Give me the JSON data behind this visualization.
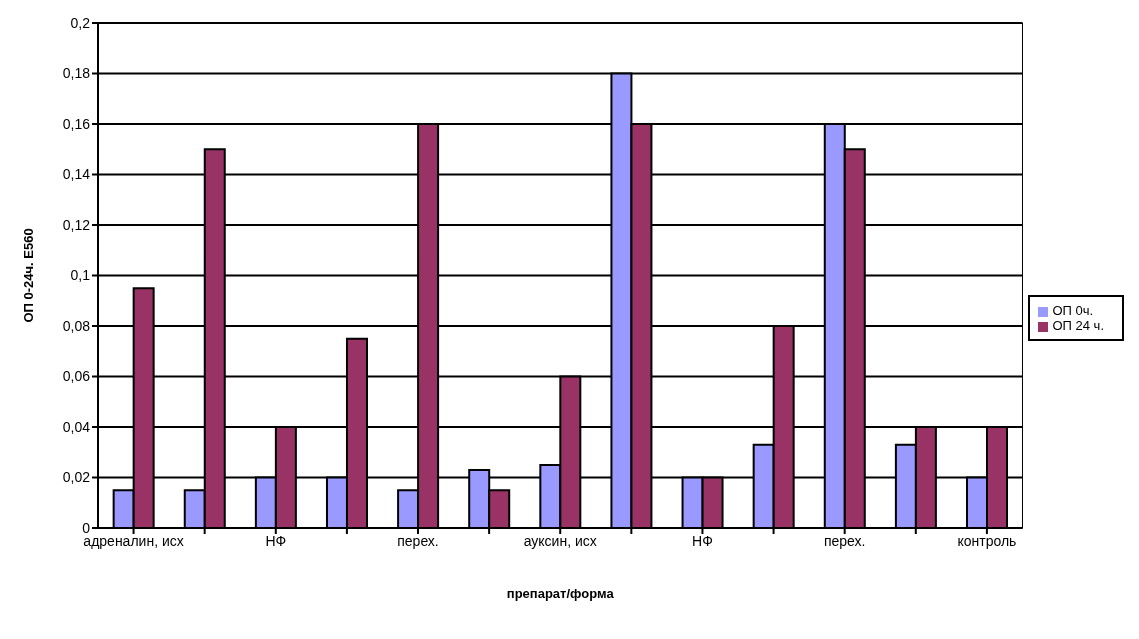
{
  "chart_data": {
    "type": "bar",
    "xlabel": "препарат/форма",
    "ylabel": "ОП 0-24ч. Е560",
    "categories": [
      "адреналин, исх",
      null,
      "НФ",
      null,
      "перех.",
      null,
      "ауксин, исх",
      null,
      "НФ",
      null,
      "перех.",
      null,
      "контроль"
    ],
    "series": [
      {
        "name": "ОП 0ч.",
        "color": "#9999ff",
        "values": [
          0.015,
          0.015,
          0.02,
          0.02,
          0.015,
          0.023,
          0.025,
          0.18,
          0.02,
          0.033,
          0.16,
          0.033,
          0.02
        ]
      },
      {
        "name": "ОП 24 ч.",
        "color": "#993366",
        "values": [
          0.095,
          0.15,
          0.04,
          0.075,
          0.16,
          0.015,
          0.06,
          0.16,
          0.02,
          0.08,
          0.15,
          0.04,
          0.04
        ]
      }
    ],
    "ylim": [
      0,
      0.2
    ],
    "yticks": [
      0,
      {
        "value": 0.02,
        "label": "0,02"
      },
      {
        "value": 0.04,
        "label": "0,04"
      },
      {
        "value": 0.06,
        "label": "0,06"
      },
      {
        "value": 0.08,
        "label": "0,08"
      },
      {
        "value": 0.1,
        "label": "0,1"
      },
      {
        "value": 0.12,
        "label": "0,12"
      },
      {
        "value": 0.14,
        "label": "0,14"
      },
      {
        "value": 0.16,
        "label": "0,16"
      },
      {
        "value": 0.18,
        "label": "0,18"
      },
      {
        "value": 0.2,
        "label": "0,2"
      }
    ],
    "grid": "y",
    "legend": "right"
  }
}
